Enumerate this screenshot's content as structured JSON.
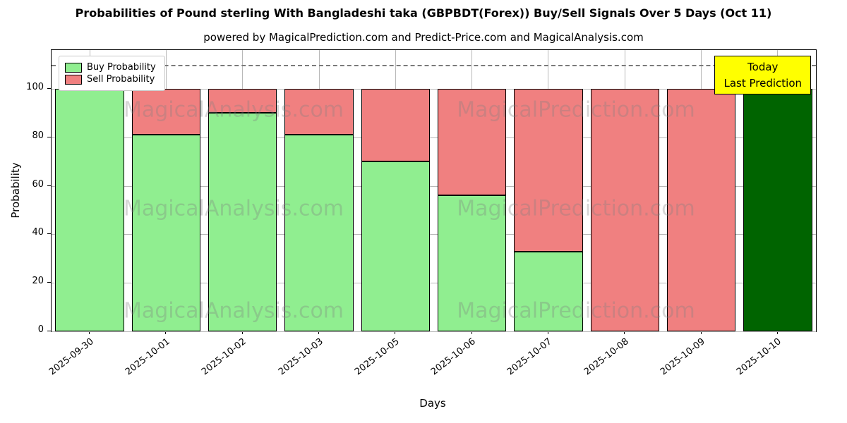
{
  "chart_data": {
    "type": "bar",
    "stacked": true,
    "title": "Probabilities of Pound sterling With Bangladeshi taka (GBPBDT(Forex)) Buy/Sell Signals Over 5 Days (Oct 11)",
    "subtitle": "powered by MagicalPrediction.com and Predict-Price.com and MagicalAnalysis.com",
    "xlabel": "Days",
    "ylabel": "Probability",
    "categories": [
      "2025-09-30",
      "2025-10-01",
      "2025-10-02",
      "2025-10-03",
      "2025-10-05",
      "2025-10-06",
      "2025-10-07",
      "2025-10-08",
      "2025-10-09",
      "2025-10-10"
    ],
    "series": [
      {
        "name": "Buy Probability",
        "color": "#90ee90",
        "values": [
          100,
          81,
          90,
          81,
          70,
          56,
          33,
          0,
          0,
          100
        ]
      },
      {
        "name": "Sell Probability",
        "color": "#f08080",
        "values": [
          0,
          19,
          10,
          19,
          30,
          44,
          67,
          100,
          100,
          0
        ]
      }
    ],
    "today_bar": {
      "category": "2025-10-10",
      "value": 100,
      "color": "#006400"
    },
    "yticks": [
      0,
      20,
      40,
      60,
      80,
      100
    ],
    "ylim": [
      0,
      116
    ],
    "dashed_line_y": 110,
    "grid": true,
    "legend_position": "upper-left",
    "annotation": {
      "lines": [
        "Today",
        "Last Prediction"
      ],
      "bg_color": "#ffff00"
    },
    "watermarks": [
      "MagicalAnalysis.com",
      "MagicalPrediction.com"
    ]
  }
}
